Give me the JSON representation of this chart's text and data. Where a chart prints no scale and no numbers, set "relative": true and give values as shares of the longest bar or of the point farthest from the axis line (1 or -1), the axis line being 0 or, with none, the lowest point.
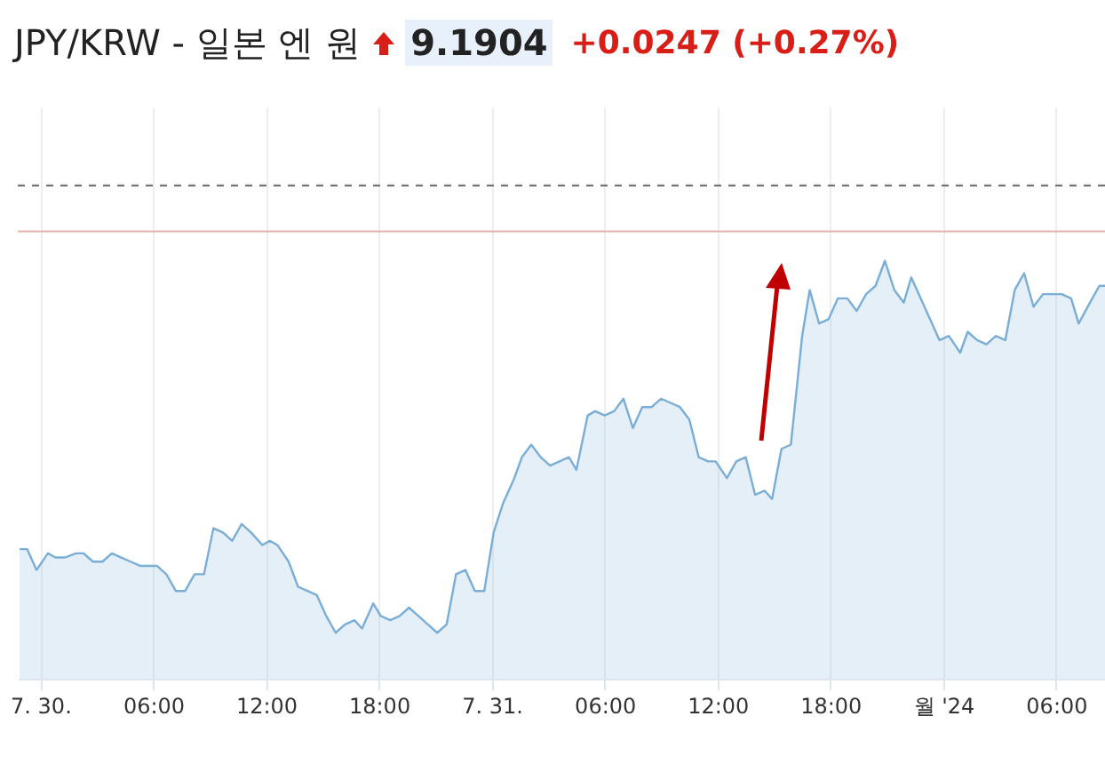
{
  "chart_data": {
    "type": "area",
    "title": "JPY/KRW - 일본 엔 원",
    "annotations": [
      "9.1904",
      "+0.0247 (+0.27%)"
    ],
    "relative": true,
    "grid": "x",
    "xlim": [
      "2024-07-29T22:48",
      "2024-08-01T08:36"
    ],
    "xticks": [
      {
        "value": "2024-07-30T00:00",
        "label": "7. 30."
      },
      {
        "value": "2024-07-30T06:00",
        "label": "06:00"
      },
      {
        "value": "2024-07-30T12:00",
        "label": "12:00"
      },
      {
        "value": "2024-07-30T18:00",
        "label": "18:00"
      },
      {
        "value": "2024-07-31T00:00",
        "label": "7. 31."
      },
      {
        "value": "2024-07-31T06:00",
        "label": "06:00"
      },
      {
        "value": "2024-07-31T12:00",
        "label": "12:00"
      },
      {
        "value": "2024-07-31T18:00",
        "label": "18:00"
      },
      {
        "value": "2024-08-01T00:00",
        "label": "월 '24"
      },
      {
        "value": "2024-08-01T06:00",
        "label": "06:00"
      }
    ],
    "ref_lines": [
      {
        "axis": "y",
        "value": 1.18,
        "line_style": "dashed",
        "color": "#666666"
      },
      {
        "axis": "y",
        "value": 1.07,
        "color": "#e8b4ae"
      }
    ],
    "x": [
      "2024-07-29T22:54",
      "2024-07-29T23:18",
      "2024-07-29T23:48",
      "2024-07-30T00:24",
      "2024-07-30T00:48",
      "2024-07-30T01:18",
      "2024-07-30T01:54",
      "2024-07-30T02:18",
      "2024-07-30T02:48",
      "2024-07-30T03:18",
      "2024-07-30T03:48",
      "2024-07-30T04:18",
      "2024-07-30T04:48",
      "2024-07-30T05:18",
      "2024-07-30T05:42",
      "2024-07-30T06:12",
      "2024-07-30T06:42",
      "2024-07-30T07:12",
      "2024-07-30T07:42",
      "2024-07-30T08:12",
      "2024-07-30T08:42",
      "2024-07-30T09:12",
      "2024-07-30T09:42",
      "2024-07-30T10:12",
      "2024-07-30T10:42",
      "2024-07-30T11:12",
      "2024-07-30T11:48",
      "2024-07-30T12:12",
      "2024-07-30T12:36",
      "2024-07-30T13:12",
      "2024-07-30T13:42",
      "2024-07-30T14:12",
      "2024-07-30T14:42",
      "2024-07-30T15:12",
      "2024-07-30T15:42",
      "2024-07-30T16:12",
      "2024-07-30T16:42",
      "2024-07-30T17:06",
      "2024-07-30T17:42",
      "2024-07-30T18:06",
      "2024-07-30T18:36",
      "2024-07-30T19:06",
      "2024-07-30T19:36",
      "2024-07-30T20:06",
      "2024-07-30T20:36",
      "2024-07-30T21:06",
      "2024-07-30T21:36",
      "2024-07-30T22:06",
      "2024-07-30T22:36",
      "2024-07-30T23:06",
      "2024-07-30T23:36",
      "2024-07-31T00:06",
      "2024-07-31T00:36",
      "2024-07-31T01:12",
      "2024-07-31T01:36",
      "2024-07-31T02:06",
      "2024-07-31T02:36",
      "2024-07-31T03:06",
      "2024-07-31T03:36",
      "2024-07-31T04:06",
      "2024-07-31T04:30",
      "2024-07-31T05:06",
      "2024-07-31T05:30",
      "2024-07-31T06:00",
      "2024-07-31T06:30",
      "2024-07-31T07:00",
      "2024-07-31T07:30",
      "2024-07-31T08:00",
      "2024-07-31T08:30",
      "2024-07-31T09:00",
      "2024-07-31T09:30",
      "2024-07-31T10:00",
      "2024-07-31T10:30",
      "2024-07-31T11:00",
      "2024-07-31T11:30",
      "2024-07-31T11:54",
      "2024-07-31T12:30",
      "2024-07-31T13:00",
      "2024-07-31T13:30",
      "2024-07-31T14:00",
      "2024-07-31T14:30",
      "2024-07-31T14:54",
      "2024-07-31T15:24",
      "2024-07-31T15:54",
      "2024-07-31T16:30",
      "2024-07-31T16:54",
      "2024-07-31T17:24",
      "2024-07-31T17:54",
      "2024-07-31T18:24",
      "2024-07-31T18:54",
      "2024-07-31T19:24",
      "2024-07-31T19:54",
      "2024-07-31T20:24",
      "2024-07-31T20:54",
      "2024-07-31T21:24",
      "2024-07-31T21:54",
      "2024-07-31T22:18",
      "2024-07-31T22:54",
      "2024-07-31T23:24",
      "2024-07-31T23:48",
      "2024-08-01T00:18",
      "2024-08-01T00:54",
      "2024-08-01T01:18",
      "2024-08-01T01:48",
      "2024-08-01T02:18",
      "2024-08-01T02:48",
      "2024-08-01T03:18",
      "2024-08-01T03:48",
      "2024-08-01T04:18",
      "2024-08-01T04:48",
      "2024-08-01T05:18",
      "2024-08-01T05:42",
      "2024-08-01T06:18",
      "2024-08-01T06:48",
      "2024-08-01T07:12",
      "2024-08-01T07:48",
      "2024-08-01T08:18",
      "2024-08-01T08:36"
    ],
    "series": [
      {
        "color": "#7aaed6",
        "values": [
          0.31,
          0.31,
          0.26,
          0.3,
          0.29,
          0.29,
          0.3,
          0.3,
          0.28,
          0.28,
          0.3,
          0.29,
          0.28,
          0.27,
          0.27,
          0.27,
          0.25,
          0.21,
          0.21,
          0.25,
          0.25,
          0.36,
          0.35,
          0.33,
          0.37,
          0.35,
          0.32,
          0.33,
          0.32,
          0.28,
          0.22,
          0.21,
          0.2,
          0.15,
          0.11,
          0.13,
          0.14,
          0.12,
          0.18,
          0.15,
          0.14,
          0.15,
          0.17,
          0.15,
          0.13,
          0.11,
          0.13,
          0.25,
          0.26,
          0.21,
          0.21,
          0.35,
          0.42,
          0.48,
          0.53,
          0.56,
          0.53,
          0.51,
          0.52,
          0.53,
          0.5,
          0.63,
          0.64,
          0.63,
          0.64,
          0.67,
          0.6,
          0.65,
          0.65,
          0.67,
          0.66,
          0.65,
          0.62,
          0.53,
          0.52,
          0.52,
          0.48,
          0.52,
          0.53,
          0.44,
          0.45,
          0.43,
          0.55,
          0.56,
          0.82,
          0.93,
          0.85,
          0.86,
          0.91,
          0.91,
          0.88,
          0.92,
          0.94,
          1.0,
          0.93,
          0.9,
          0.96,
          0.9,
          0.85,
          0.81,
          0.82,
          0.78,
          0.83,
          0.81,
          0.8,
          0.82,
          0.81,
          0.93,
          0.97,
          0.89,
          0.92,
          0.92,
          0.92,
          0.91,
          0.85,
          0.9,
          0.94,
          0.94
        ]
      }
    ]
  }
}
